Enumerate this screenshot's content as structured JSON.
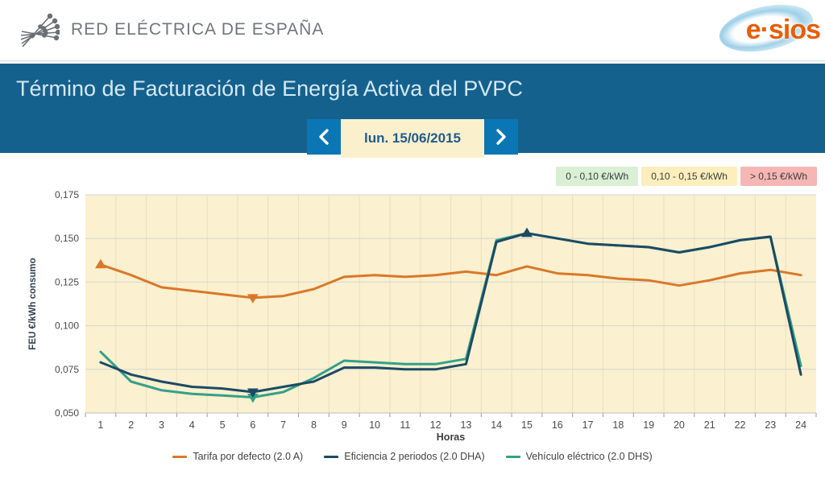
{
  "header": {
    "brand": "RED ELÉCTRICA DE ESPAÑA",
    "esios_logo_text": "e·sios"
  },
  "banner": {
    "title": "Término de Facturación de Energía Activa del PVPC",
    "date": "lun. 15/06/2015",
    "prev": "prev-day",
    "next": "next-day"
  },
  "price_bands": [
    {
      "label": "0 - 0,10 €/kWh",
      "bg": "#d9f0d4"
    },
    {
      "label": "0,10 - 0,15 €/kWh",
      "bg": "#fceebd"
    },
    {
      "label": "> 0,15 €/kWh",
      "bg": "#f5b6b4"
    }
  ],
  "chart_data": {
    "type": "line",
    "title": "",
    "xlabel": "Horas",
    "ylabel": "FEU €/kWh consumo",
    "categories": [
      1,
      2,
      3,
      4,
      5,
      6,
      7,
      8,
      9,
      10,
      11,
      12,
      13,
      14,
      15,
      16,
      17,
      18,
      19,
      20,
      21,
      22,
      23,
      24
    ],
    "ylim": [
      0.05,
      0.175
    ],
    "ytick_step": 0.025,
    "ytick_labels": [
      "0,050",
      "0,075",
      "0,100",
      "0,125",
      "0,150",
      "0,175"
    ],
    "grid": true,
    "plot_bg": "#fbf0cf",
    "grid_color": "#d2d8d2",
    "legend_position": "bottom",
    "series": [
      {
        "name": "Tarifa por defecto (2.0 A)",
        "color": "#d9782a",
        "values": [
          0.135,
          0.129,
          0.122,
          0.12,
          0.118,
          0.116,
          0.117,
          0.121,
          0.128,
          0.129,
          0.128,
          0.129,
          0.131,
          0.129,
          0.134,
          0.13,
          0.129,
          0.127,
          0.126,
          0.123,
          0.126,
          0.13,
          0.132,
          0.129
        ]
      },
      {
        "name": "Eficiencia 2 periodos (2.0 DHA)",
        "color": "#1c4a66",
        "values": [
          0.079,
          0.072,
          0.068,
          0.065,
          0.064,
          0.062,
          0.065,
          0.068,
          0.076,
          0.076,
          0.075,
          0.075,
          0.078,
          0.148,
          0.153,
          0.15,
          0.147,
          0.146,
          0.145,
          0.142,
          0.145,
          0.149,
          0.151,
          0.072
        ]
      },
      {
        "name": "Vehículo eléctrico (2.0 DHS)",
        "color": "#32a188",
        "values": [
          0.085,
          0.068,
          0.063,
          0.061,
          0.06,
          0.059,
          0.062,
          0.07,
          0.08,
          0.079,
          0.078,
          0.078,
          0.081,
          0.149,
          0.153,
          0.15,
          0.147,
          0.146,
          0.145,
          0.142,
          0.145,
          0.149,
          0.151,
          0.077
        ]
      }
    ],
    "extreme_markers": [
      {
        "series": 0,
        "hour": 1,
        "dir": "up"
      },
      {
        "series": 0,
        "hour": 6,
        "dir": "down"
      },
      {
        "series": 2,
        "hour": 6,
        "dir": "down"
      },
      {
        "series": 2,
        "hour": 15,
        "dir": "up"
      },
      {
        "series": 1,
        "hour": 6,
        "dir": "down"
      },
      {
        "series": 1,
        "hour": 15,
        "dir": "up"
      }
    ]
  }
}
